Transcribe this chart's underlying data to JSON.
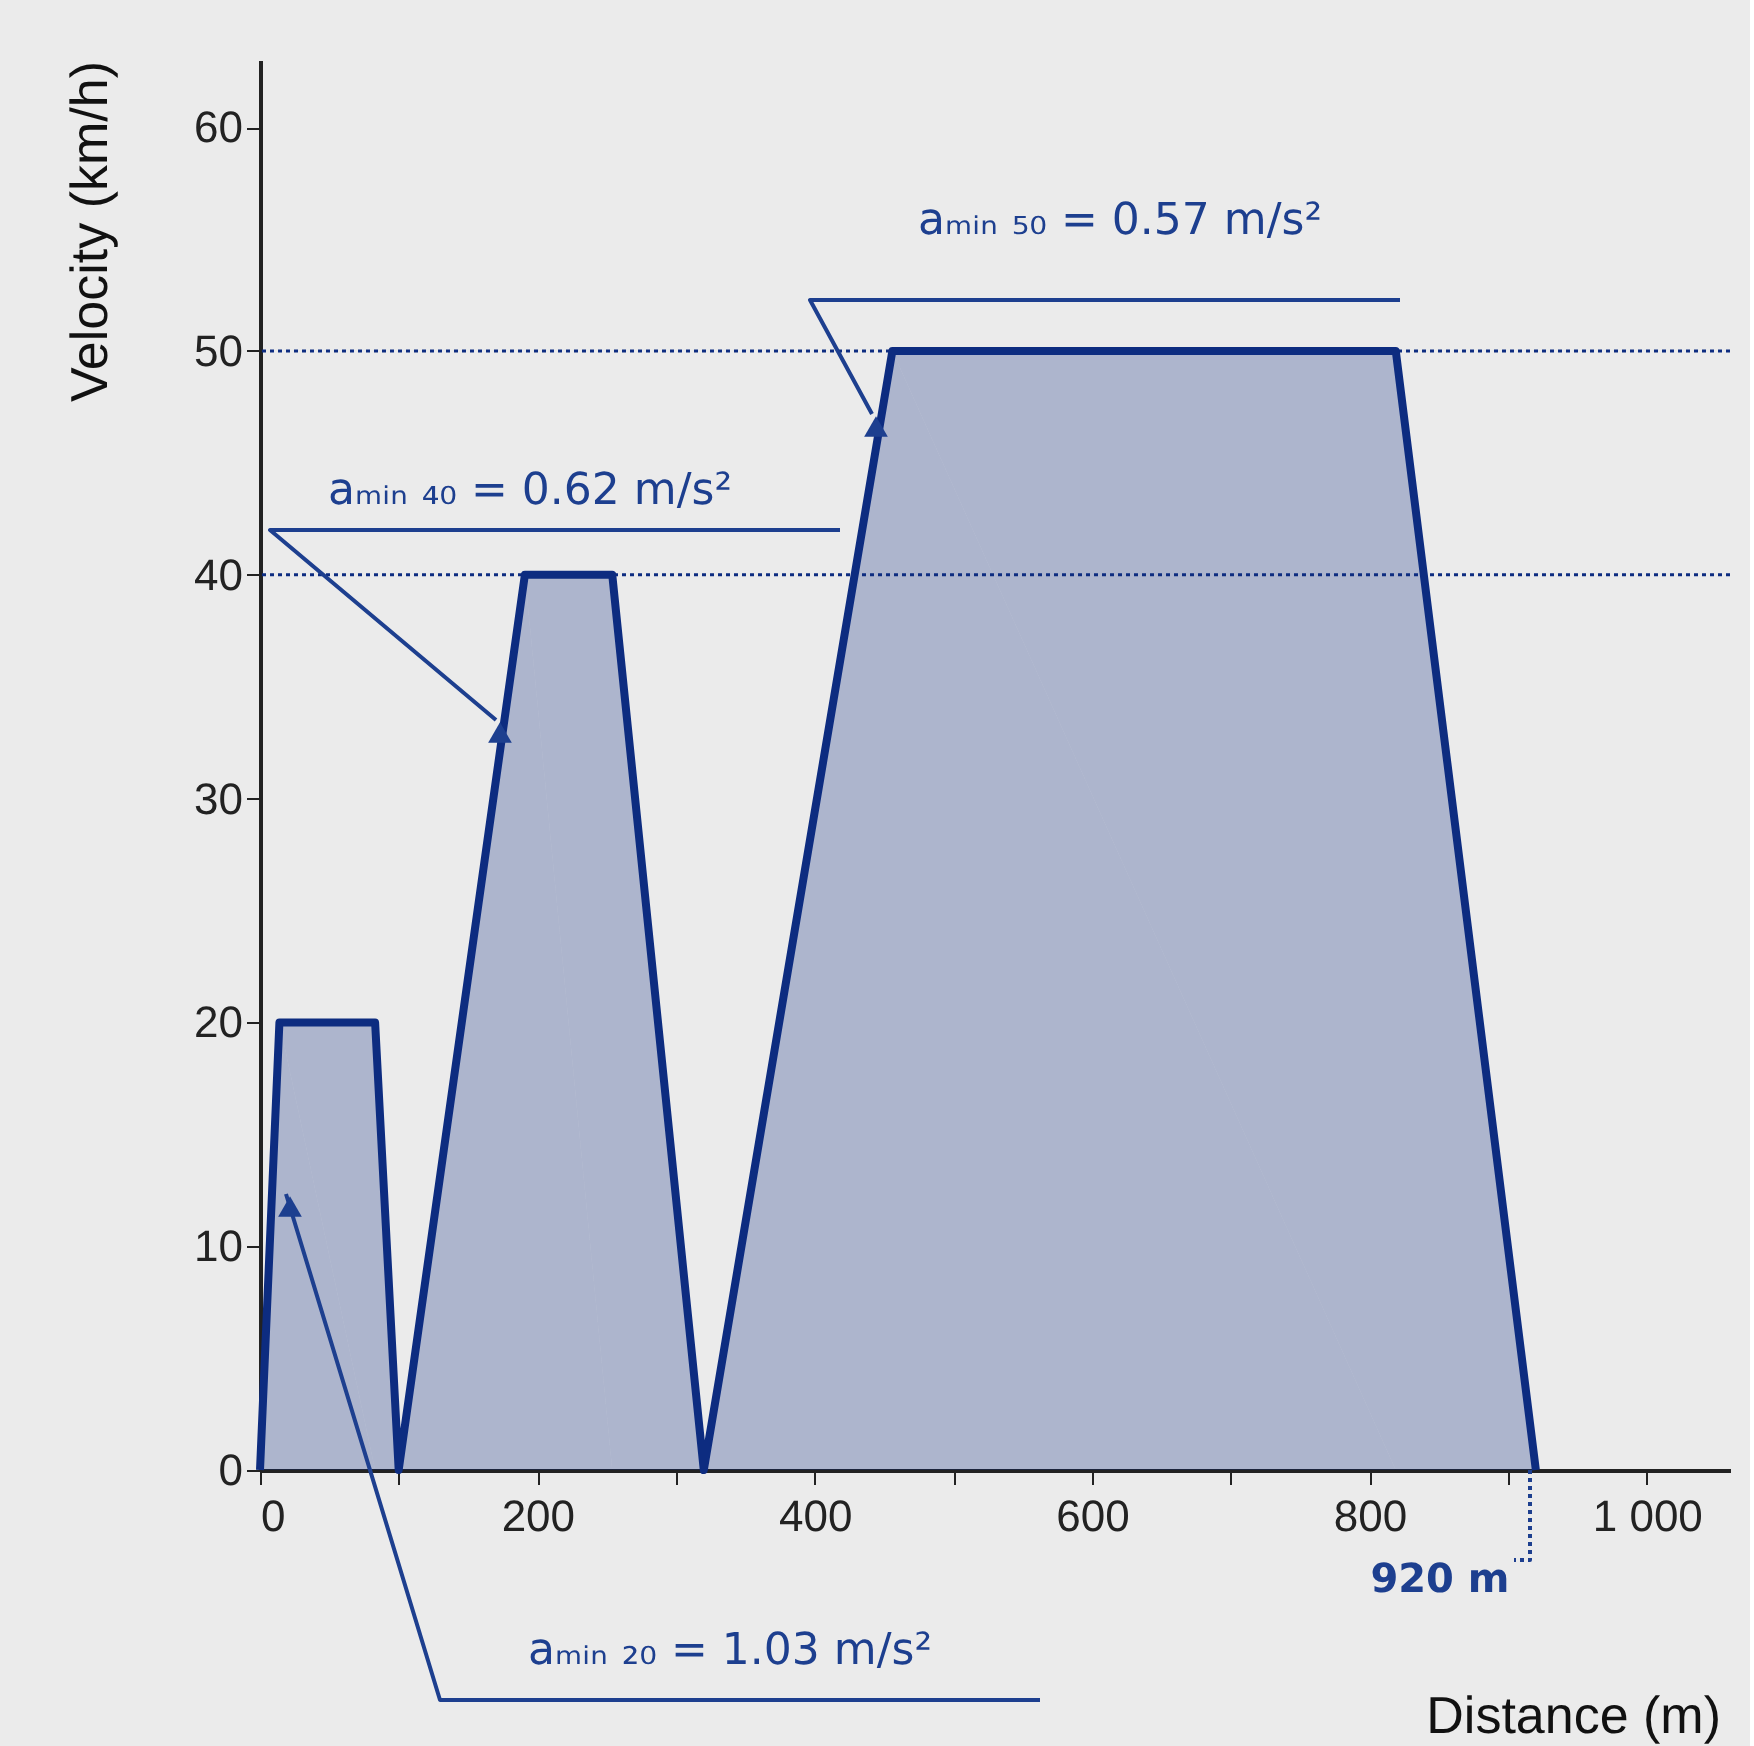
{
  "chart_data": {
    "type": "area",
    "xlabel": "Distance (m)",
    "ylabel": "Velocity (km/h)",
    "x": [
      0,
      14,
      83,
      100,
      191,
      254,
      320,
      456,
      819,
      920
    ],
    "series": [
      {
        "color": "#0d2c80",
        "values": [
          0,
          20,
          20,
          0,
          40,
          40,
          0,
          50,
          50,
          0
        ]
      }
    ],
    "xlim": [
      0,
      1060
    ],
    "ylim": [
      0,
      63
    ],
    "xticks": [
      0,
      {
        "value": 100,
        "label": null
      },
      200,
      {
        "value": 300,
        "label": null
      },
      400,
      {
        "value": 500,
        "label": null
      },
      600,
      {
        "value": 700,
        "label": null
      },
      800,
      {
        "value": 900,
        "label": null
      },
      {
        "value": 1000,
        "label": "1 000"
      }
    ],
    "yticks": [
      0,
      10,
      20,
      30,
      40,
      50,
      60
    ],
    "grid": false,
    "line_style": "solid",
    "ref_lines": [
      {
        "axis": "y",
        "value": 50,
        "label": null,
        "color": "#0d2c80",
        "line_style": "dotted"
      },
      {
        "axis": "y",
        "value": 40,
        "label": null,
        "color": "#0d2c80",
        "line_style": "dotted"
      }
    ],
    "annotations": [
      "aₘᵢₙ ₂₀ = 1.03 m/s²",
      "aₘᵢₙ ₄₀ = 0.62 m/s²",
      "aₘᵢₙ ₅₀ = 0.57 m/s²",
      "920 m"
    ]
  }
}
